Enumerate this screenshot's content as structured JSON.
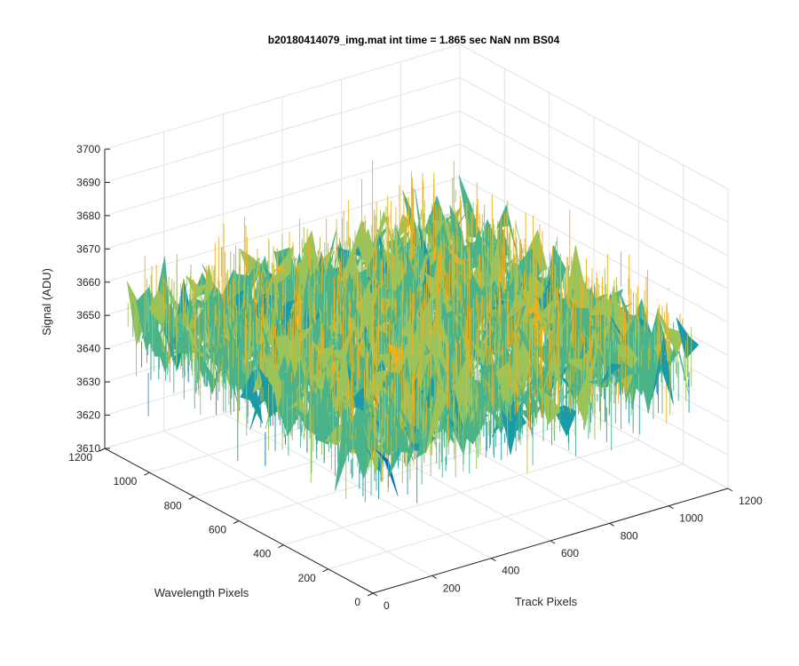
{
  "chart_data": {
    "type": "surface",
    "title": "b20180414079_img.mat int time = 1.865 sec  NaN nm BS04",
    "xlabel": "Track Pixels",
    "ylabel": "Wavelength Pixels",
    "zlabel": "Signal (ADU)",
    "xlim": [
      0,
      1200
    ],
    "ylim": [
      0,
      1200
    ],
    "zlim": [
      3610,
      3700
    ],
    "x_ticks": [
      "0",
      "200",
      "400",
      "600",
      "800",
      "1000",
      "1200"
    ],
    "y_ticks": [
      "0",
      "200",
      "400",
      "600",
      "800",
      "1000",
      "1200"
    ],
    "z_ticks": [
      "3610",
      "3620",
      "3630",
      "3640",
      "3650",
      "3660",
      "3670",
      "3680",
      "3690",
      "3700"
    ],
    "grid": true,
    "data_extent": {
      "x": [
        0,
        1100
      ],
      "y": [
        0,
        1100
      ]
    },
    "signal": {
      "mean": 3652,
      "min": 3615,
      "max": 3695
    },
    "colormap": [
      "#0072BD",
      "#1B9AA8",
      "#4BB389",
      "#9CC35A",
      "#EDB120"
    ]
  }
}
